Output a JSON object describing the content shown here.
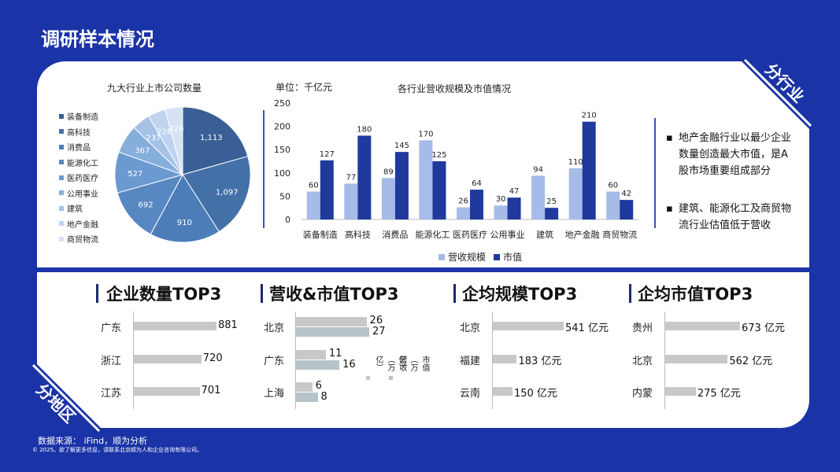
{
  "page_title": "调研样本情况",
  "ribbon_top": "分行业",
  "ribbon_bottom": "分地区",
  "pie": {
    "title": "九大行业上市公司数量",
    "labels": [
      "装备制造",
      "高科技",
      "消费品",
      "能源化工",
      "医药医疗",
      "公用事业",
      "建筑",
      "地产金融",
      "商贸物流"
    ],
    "values": [
      1113,
      1097,
      910,
      692,
      527,
      367,
      237,
      226,
      226
    ],
    "colors": [
      "#3a5f96",
      "#4470a8",
      "#4d7db9",
      "#5888c2",
      "#6a9ad0",
      "#86aedb",
      "#a5c2e6",
      "#bfd3ee",
      "#d5e2f4"
    ]
  },
  "bar": {
    "unit": "单位：千亿元",
    "title": "各行业营收规模及市值情况",
    "categories": [
      "装备制造",
      "高科技",
      "消费品",
      "能源化工",
      "医药医疗",
      "公用事业",
      "建筑",
      "地产金融",
      "商贸物流"
    ],
    "series": [
      {
        "name": "营收规模",
        "values": [
          60,
          77,
          89,
          170,
          26,
          30,
          94,
          110,
          60
        ],
        "color": "#a7bbe8"
      },
      {
        "name": "市值",
        "values": [
          127,
          180,
          145,
          125,
          64,
          47,
          25,
          210,
          42
        ],
        "color": "#1f3a9c"
      }
    ],
    "yticks": [
      "250",
      "200",
      "150",
      "100",
      "50",
      "0"
    ],
    "ylim": [
      0,
      250
    ]
  },
  "bullets": [
    "地产金融行业以最少企业数量创造最大市值，是A股市场重要组成部分",
    "建筑、能源化工及商贸物流行业估值低于营收"
  ],
  "sec1": {
    "title": "企业数量TOP3",
    "rows": [
      {
        "label": "广东",
        "value": 881,
        "text": "881"
      },
      {
        "label": "浙江",
        "value": 720,
        "text": "720"
      },
      {
        "label": "江苏",
        "value": 701,
        "text": "701"
      }
    ]
  },
  "sec2": {
    "title": "营收&市值TOP3",
    "rows": [
      {
        "label": "北京",
        "rev": 26,
        "cap": 27,
        "rev_text": "26",
        "cap_text": "27"
      },
      {
        "label": "广东",
        "rev": 11,
        "cap": 16,
        "rev_text": "11",
        "cap_text": "16"
      },
      {
        "label": "上海",
        "rev": 6,
        "cap": 8,
        "rev_text": "6",
        "cap_text": "8"
      }
    ],
    "legend_rev": "营收（万亿）",
    "legend_cap": "市值（万亿）"
  },
  "sec3": {
    "title": "企均规模TOP3",
    "rows": [
      {
        "label": "北京",
        "value": 541,
        "text": "541 亿元"
      },
      {
        "label": "福建",
        "value": 183,
        "text": "183 亿元"
      },
      {
        "label": "云南",
        "value": 150,
        "text": "150 亿元"
      }
    ]
  },
  "sec4": {
    "title": "企均市值TOP3",
    "rows": [
      {
        "label": "贵州",
        "value": 673,
        "text": "673 亿元"
      },
      {
        "label": "北京",
        "value": 562,
        "text": "562 亿元"
      },
      {
        "label": "内蒙",
        "value": 275,
        "text": "275 亿元"
      }
    ]
  },
  "source": "数据来源： iFind，顺为分析",
  "copyright": "© 2025。欲了解更多信息，请联系北京顺为人和企业咨询有限公司。"
}
